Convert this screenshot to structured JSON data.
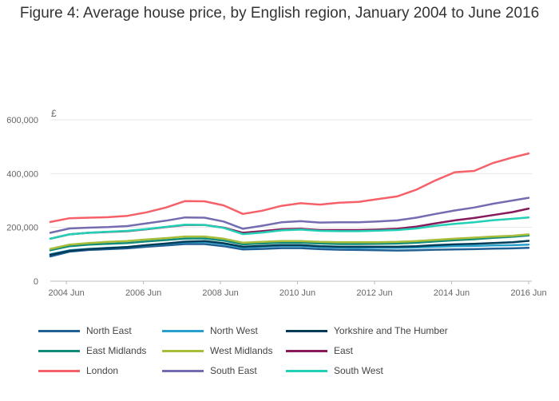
{
  "title": "Figure 4: Average house price, by English region, January 2004 to June 2016",
  "chart_data": {
    "type": "line",
    "title": "Figure 4: Average house price, by English region, January 2004 to June 2016",
    "y_unit_label": "£",
    "xlabel": "",
    "ylabel": "",
    "x_tick_labels": [
      "2004 Jun",
      "2006 Jun",
      "2008 Jun",
      "2010 Jun",
      "2012 Jun",
      "2014 Jun",
      "2016 Jun"
    ],
    "y_tick_labels": [
      "0",
      "200,000",
      "400,000",
      "600,000"
    ],
    "ylim": [
      0,
      600000
    ],
    "grid": "horizontal",
    "legend_position": "bottom",
    "x": [
      "2004-01",
      "2004-07",
      "2005-01",
      "2005-07",
      "2006-01",
      "2006-07",
      "2007-01",
      "2007-07",
      "2008-01",
      "2008-07",
      "2009-01",
      "2009-07",
      "2010-01",
      "2010-07",
      "2011-01",
      "2011-07",
      "2012-01",
      "2012-07",
      "2013-01",
      "2013-07",
      "2014-01",
      "2014-07",
      "2015-01",
      "2015-07",
      "2016-01",
      "2016-06"
    ],
    "series": [
      {
        "name": "North East",
        "color": "#206095",
        "values": [
          92000,
          110000,
          116000,
          119000,
          122000,
          128000,
          133000,
          138000,
          138000,
          130000,
          118000,
          120000,
          123000,
          123000,
          119000,
          117000,
          116000,
          115000,
          114000,
          115000,
          117000,
          118000,
          119000,
          121000,
          122000,
          124000
        ]
      },
      {
        "name": "North West",
        "color": "#27a0cc",
        "values": [
          100000,
          115000,
          120000,
          124000,
          127000,
          133000,
          139000,
          145000,
          146000,
          138000,
          125000,
          128000,
          131000,
          131000,
          127000,
          125000,
          124000,
          124000,
          124000,
          125000,
          128000,
          130000,
          131000,
          133000,
          134000,
          136000
        ]
      },
      {
        "name": "Yorkshire and The Humber",
        "color": "#003c57",
        "values": [
          98000,
          113000,
          119000,
          123000,
          127000,
          134000,
          140000,
          147000,
          149000,
          141000,
          128000,
          131000,
          134000,
          134000,
          130000,
          128000,
          128000,
          128000,
          128000,
          130000,
          134000,
          137000,
          139000,
          142000,
          145000,
          150000
        ]
      },
      {
        "name": "East Midlands",
        "color": "#118c7b",
        "values": [
          115000,
          130000,
          136000,
          139000,
          142000,
          148000,
          153000,
          158000,
          159000,
          151000,
          137000,
          140000,
          143000,
          143000,
          140000,
          138000,
          138000,
          139000,
          140000,
          143000,
          148000,
          152000,
          156000,
          161000,
          165000,
          170000
        ]
      },
      {
        "name": "West Midlands",
        "color": "#a8bd3a",
        "values": [
          120000,
          136000,
          142000,
          146000,
          149000,
          155000,
          160000,
          166000,
          166000,
          158000,
          143000,
          146000,
          149000,
          149000,
          146000,
          145000,
          145000,
          145000,
          146000,
          149000,
          154000,
          158000,
          162000,
          166000,
          169000,
          174000
        ]
      },
      {
        "name": "East",
        "color": "#871a5b",
        "values": [
          158000,
          174000,
          180000,
          183000,
          186000,
          193000,
          201000,
          209000,
          209000,
          199000,
          180000,
          186000,
          193000,
          195000,
          190000,
          190000,
          190000,
          192000,
          195000,
          203000,
          215000,
          226000,
          235000,
          246000,
          257000,
          270000
        ]
      },
      {
        "name": "London",
        "color": "#f66068",
        "values": [
          220000,
          234000,
          236000,
          238000,
          243000,
          256000,
          274000,
          298000,
          297000,
          282000,
          250000,
          262000,
          280000,
          290000,
          285000,
          292000,
          295000,
          305000,
          315000,
          340000,
          375000,
          405000,
          410000,
          440000,
          460000,
          475000
        ]
      },
      {
        "name": "South East",
        "color": "#746cb1",
        "values": [
          180000,
          196000,
          199000,
          201000,
          205000,
          215000,
          225000,
          237000,
          236000,
          222000,
          195000,
          206000,
          219000,
          223000,
          218000,
          219000,
          219000,
          222000,
          226000,
          236000,
          250000,
          263000,
          274000,
          288000,
          300000,
          310000
        ]
      },
      {
        "name": "South West",
        "color": "#22d0b6",
        "values": [
          158000,
          174000,
          180000,
          184000,
          187000,
          194000,
          202000,
          210000,
          209000,
          198000,
          175000,
          181000,
          189000,
          192000,
          187000,
          186000,
          186000,
          188000,
          190000,
          196000,
          206000,
          213000,
          219000,
          227000,
          232000,
          237000
        ]
      }
    ]
  }
}
